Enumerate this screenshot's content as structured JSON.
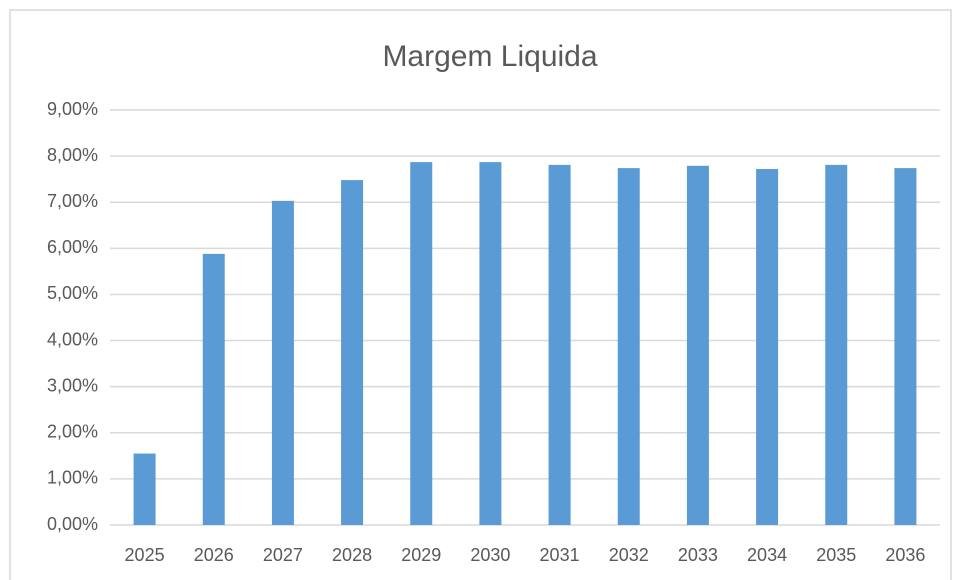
{
  "chart_data": {
    "type": "bar",
    "title": "Margem Liquida",
    "categories": [
      "2025",
      "2026",
      "2027",
      "2028",
      "2029",
      "2030",
      "2031",
      "2032",
      "2033",
      "2034",
      "2035",
      "2036"
    ],
    "values": [
      1.55,
      5.88,
      7.03,
      7.48,
      7.87,
      7.87,
      7.81,
      7.74,
      7.79,
      7.72,
      7.81,
      7.74
    ],
    "color": "#5b9bd5",
    "ylim": [
      0,
      9
    ],
    "yticks": [
      {
        "value": 0,
        "label": "0,00%"
      },
      {
        "value": 1,
        "label": "1,00%"
      },
      {
        "value": 2,
        "label": "2,00%"
      },
      {
        "value": 3,
        "label": "3,00%"
      },
      {
        "value": 4,
        "label": "4,00%"
      },
      {
        "value": 5,
        "label": "5,00%"
      },
      {
        "value": 6,
        "label": "6,00%"
      },
      {
        "value": 7,
        "label": "7,00%"
      },
      {
        "value": 8,
        "label": "8,00%"
      },
      {
        "value": 9,
        "label": "9,00%"
      }
    ],
    "grid": true
  }
}
